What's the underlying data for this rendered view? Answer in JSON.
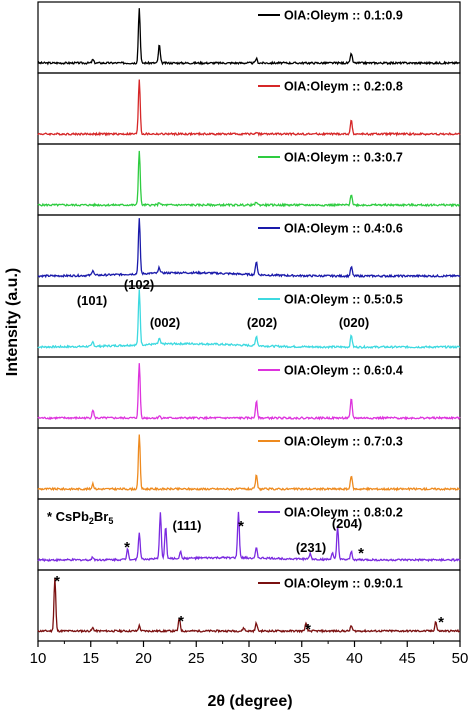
{
  "chart_data": {
    "type": "line",
    "title": "",
    "xlabel": "2θ (degree)",
    "ylabel": "Intensity (a.u.)",
    "xlim": [
      10,
      50
    ],
    "x_ticks": [
      "10",
      "15",
      "20",
      "25",
      "30",
      "35",
      "40",
      "45",
      "50"
    ],
    "grid": false,
    "legend_position": "top-right of each panel",
    "series": [
      {
        "name": "OIA:Oleym :: 0.1:0.9",
        "color": "#000000",
        "peaks": [
          {
            "x": 15.2,
            "h": 0.06
          },
          {
            "x": 19.6,
            "h": 1.0
          },
          {
            "x": 21.5,
            "h": 0.33
          },
          {
            "x": 30.7,
            "h": 0.08
          },
          {
            "x": 39.7,
            "h": 0.18
          }
        ]
      },
      {
        "name": "OIA:Oleym :: 0.2:0.8",
        "color": "#d62728",
        "peaks": [
          {
            "x": 19.6,
            "h": 1.0
          },
          {
            "x": 30.7,
            "h": 0.04
          },
          {
            "x": 39.7,
            "h": 0.25
          }
        ]
      },
      {
        "name": "OIA:Oleym :: 0.3:0.7",
        "color": "#2ecc40",
        "peaks": [
          {
            "x": 19.6,
            "h": 1.0
          },
          {
            "x": 21.5,
            "h": 0.05
          },
          {
            "x": 30.7,
            "h": 0.06
          },
          {
            "x": 39.7,
            "h": 0.2
          }
        ]
      },
      {
        "name": "OIA:Oleym :: 0.4:0.6",
        "color": "#1a1aaa",
        "peaks": [
          {
            "x": 15.2,
            "h": 0.1
          },
          {
            "x": 19.6,
            "h": 1.0
          },
          {
            "x": 21.5,
            "h": 0.1
          },
          {
            "x": 30.7,
            "h": 0.25
          },
          {
            "x": 39.7,
            "h": 0.17
          }
        ]
      },
      {
        "name": "OIA:Oleym :: 0.5:0.5",
        "color": "#3dd9e0",
        "peaks": [
          {
            "x": 15.2,
            "h": 0.08
          },
          {
            "x": 19.6,
            "h": 1.0
          },
          {
            "x": 21.5,
            "h": 0.1
          },
          {
            "x": 30.7,
            "h": 0.18
          },
          {
            "x": 39.7,
            "h": 0.22
          }
        ]
      },
      {
        "name": "OIA:Oleym :: 0.6:0.4",
        "color": "#dd33dd",
        "peaks": [
          {
            "x": 15.2,
            "h": 0.15
          },
          {
            "x": 19.6,
            "h": 1.0
          },
          {
            "x": 21.5,
            "h": 0.04
          },
          {
            "x": 30.7,
            "h": 0.32
          },
          {
            "x": 39.7,
            "h": 0.35
          }
        ]
      },
      {
        "name": "OIA:Oleym :: 0.7:0.3",
        "color": "#ee8a1e",
        "peaks": [
          {
            "x": 15.2,
            "h": 0.1
          },
          {
            "x": 19.6,
            "h": 1.0
          },
          {
            "x": 30.7,
            "h": 0.25
          },
          {
            "x": 39.7,
            "h": 0.25
          }
        ]
      },
      {
        "name": "OIA:Oleym :: 0.8:0.2",
        "color": "#7b2be0",
        "peaks": [
          {
            "x": 15.2,
            "h": 0.05
          },
          {
            "x": 18.5,
            "h": 0.2
          },
          {
            "x": 19.6,
            "h": 0.5
          },
          {
            "x": 21.6,
            "h": 0.85
          },
          {
            "x": 22.1,
            "h": 0.6
          },
          {
            "x": 23.5,
            "h": 0.12
          },
          {
            "x": 29.0,
            "h": 0.82
          },
          {
            "x": 30.7,
            "h": 0.18
          },
          {
            "x": 35.8,
            "h": 0.1
          },
          {
            "x": 37.9,
            "h": 0.12
          },
          {
            "x": 38.4,
            "h": 0.6
          },
          {
            "x": 39.7,
            "h": 0.15
          }
        ]
      },
      {
        "name": "OIA:Oleym :: 0.9:0.1",
        "color": "#7a1010",
        "peaks": [
          {
            "x": 11.6,
            "h": 1.0
          },
          {
            "x": 15.2,
            "h": 0.06
          },
          {
            "x": 19.6,
            "h": 0.1
          },
          {
            "x": 23.4,
            "h": 0.25
          },
          {
            "x": 29.5,
            "h": 0.06
          },
          {
            "x": 30.7,
            "h": 0.15
          },
          {
            "x": 35.4,
            "h": 0.14
          },
          {
            "x": 39.7,
            "h": 0.1
          },
          {
            "x": 47.7,
            "h": 0.18
          }
        ]
      }
    ],
    "annotations": {
      "planes_panel_5": [
        "(101)",
        "(102)",
        "(002)",
        "(202)",
        "(020)"
      ],
      "star": "*",
      "phase_label": "* CsPb",
      "phase_sub1": "2",
      "phase_mid": "Br",
      "phase_sub2": "5",
      "planes_panel_8": [
        "(111)",
        "(231)",
        "(204)"
      ]
    }
  }
}
